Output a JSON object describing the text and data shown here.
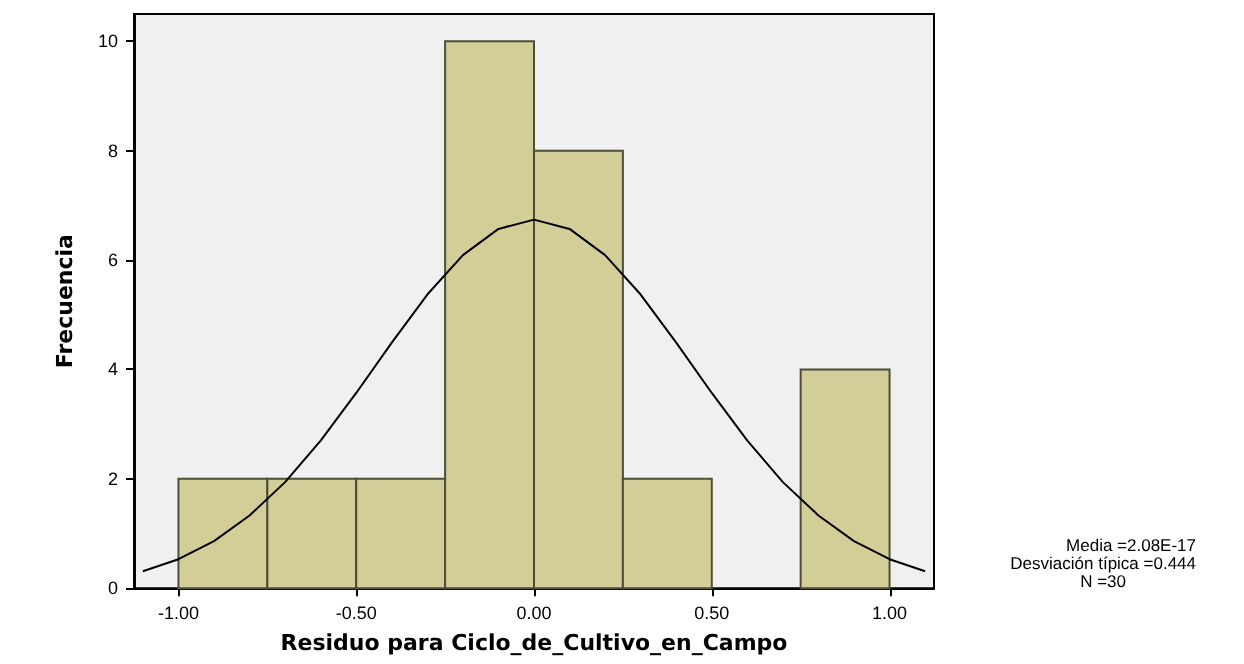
{
  "chart_data": {
    "type": "histogram",
    "xlabel": "Residuo para Ciclo_de_Cultivo_en_Campo",
    "ylabel": "Frecuencia",
    "bins": [
      -1.0,
      -0.75,
      -0.5,
      -0.25,
      0,
      0.25,
      0.5,
      0.75,
      1.0
    ],
    "values": [
      2,
      2,
      2,
      10,
      8,
      2,
      0,
      4
    ],
    "color": "#d3ce97",
    "series": [
      {
        "type": "line",
        "color": "#000000",
        "x": [
          -1.1,
          -1.0,
          -0.9,
          -0.8,
          -0.7,
          -0.6,
          -0.5,
          -0.4,
          -0.3,
          -0.2,
          -0.1,
          0,
          0.1,
          0.2,
          0.3,
          0.4,
          0.5,
          0.6,
          0.7,
          0.8,
          0.9,
          1.0,
          1.1
        ],
        "values": [
          0.31,
          0.53,
          0.86,
          1.33,
          1.94,
          2.7,
          3.57,
          4.49,
          5.37,
          6.09,
          6.57,
          6.74,
          6.57,
          6.09,
          5.37,
          4.49,
          3.57,
          2.7,
          1.94,
          1.33,
          0.86,
          0.53,
          0.31
        ]
      }
    ],
    "xlim": [
      -1.125,
      1.125
    ],
    "ylim": [
      0,
      10.5
    ],
    "xticks": [
      {
        "value": -1,
        "label": "-1.00"
      },
      {
        "value": -0.5,
        "label": "-0.50"
      },
      {
        "value": 0,
        "label": "0.00"
      },
      {
        "value": 0.5,
        "label": "0.50"
      },
      {
        "value": 1,
        "label": "1.00"
      }
    ],
    "yticks": [
      0,
      2,
      4,
      6,
      8,
      10
    ],
    "grid": false,
    "marker": "none",
    "line_style": "solid",
    "annotations": [
      "Media =2.08E-17",
      "Desviación típica =0.444",
      "N =30"
    ]
  }
}
